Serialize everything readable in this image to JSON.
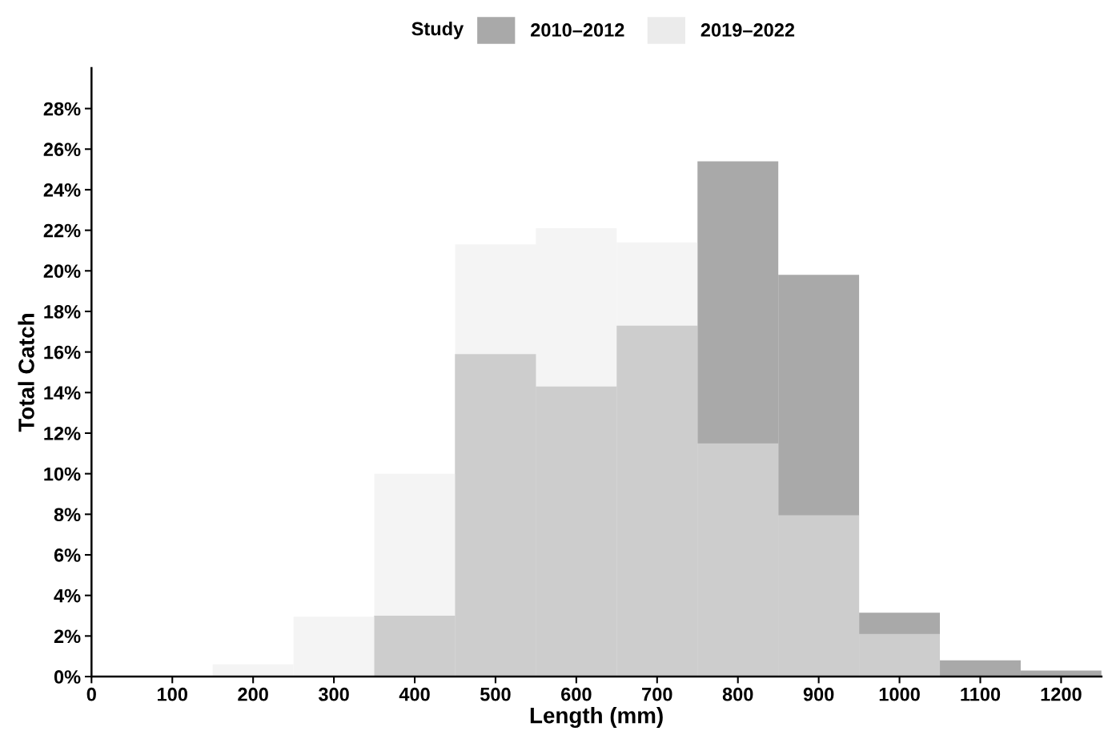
{
  "chart_data": {
    "type": "histogram",
    "xlabel": "Length (mm)",
    "ylabel": "Total Catch",
    "legend_title": "Study",
    "legend": "top",
    "bins": [
      150,
      250,
      350,
      450,
      550,
      650,
      750,
      850,
      950,
      1050,
      1150,
      1250
    ],
    "series": [
      {
        "name": "2010–2012",
        "color": "#a9a9a9",
        "values": [
          0,
          0,
          3.0,
          15.9,
          14.3,
          17.3,
          25.4,
          19.8,
          3.15,
          0.8,
          0.3
        ]
      },
      {
        "name": "2019–2022",
        "color": "#ebebeb",
        "values": [
          0.6,
          2.95,
          10.0,
          21.3,
          22.1,
          21.4,
          11.5,
          7.95,
          2.1,
          0,
          0
        ]
      }
    ],
    "xlim": [
      0,
      1250
    ],
    "xticks": [
      0,
      100,
      200,
      300,
      400,
      500,
      600,
      700,
      800,
      900,
      1000,
      1100,
      1200
    ],
    "ylim": [
      0,
      30
    ],
    "yticks": [
      {
        "value": 0,
        "label": "0%"
      },
      {
        "value": 2,
        "label": "2%"
      },
      {
        "value": 4,
        "label": "4%"
      },
      {
        "value": 6,
        "label": "6%"
      },
      {
        "value": 8,
        "label": "8%"
      },
      {
        "value": 10,
        "label": "10%"
      },
      {
        "value": 12,
        "label": "12%"
      },
      {
        "value": 14,
        "label": "14%"
      },
      {
        "value": 16,
        "label": "16%"
      },
      {
        "value": 18,
        "label": "18%"
      },
      {
        "value": 20,
        "label": "20%"
      },
      {
        "value": 22,
        "label": "22%"
      },
      {
        "value": 24,
        "label": "24%"
      },
      {
        "value": 26,
        "label": "26%"
      },
      {
        "value": 28,
        "label": "28%"
      }
    ],
    "grid": false
  }
}
